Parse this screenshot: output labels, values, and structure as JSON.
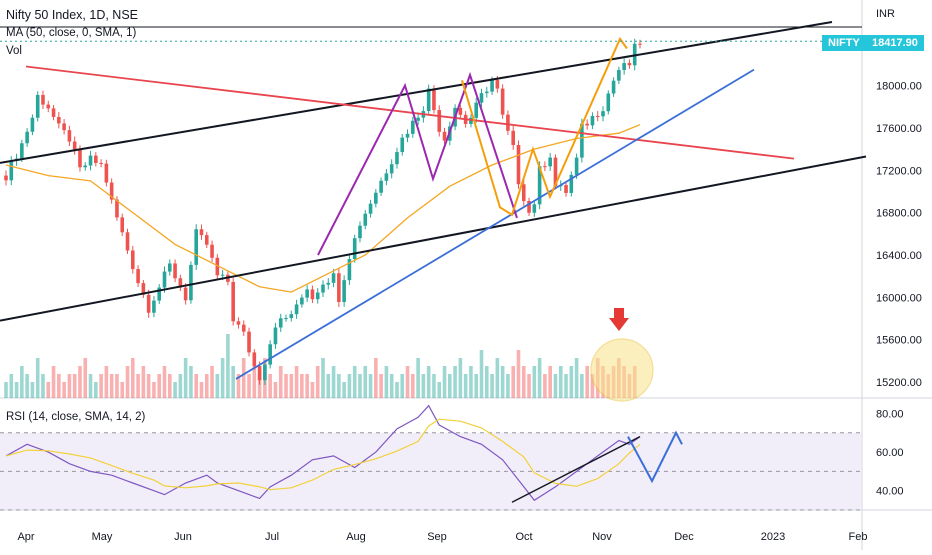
{
  "header": {
    "title": "Nifty 50 Index, 1D, NSE",
    "ma_legend": "MA (50, close, 0, SMA, 1)",
    "volume_legend": "Vol",
    "rsi_legend": "RSI (14, close, SMA, 14, 2)",
    "currency": "INR"
  },
  "price_tag": {
    "symbol": "NIFTY",
    "value": "18417.90",
    "color": "#26c6da"
  },
  "colors": {
    "up": "#26a69a",
    "down": "#ef5350",
    "ma": "#f5a623",
    "trendline": "#131722",
    "support": "#3a6fd8",
    "resistance": "#e8454f",
    "rsi": "#7e57c2",
    "rsi_signal": "#f2d13a",
    "pattern": "#9c27b0",
    "pattern_alt": "#f59e0b",
    "arrow": "#e53935",
    "circle": "#f8e38a"
  },
  "chart_data": [
    {
      "type": "candlestick",
      "title": "Nifty 50 Index, 1D, NSE",
      "x_ticks": [
        "Apr",
        "May",
        "Jun",
        "Jul",
        "Aug",
        "Sep",
        "Oct",
        "Nov",
        "Dec",
        "2023",
        "Feb"
      ],
      "y_ticks": [
        15200,
        15600,
        16000,
        16400,
        16800,
        17200,
        17600,
        18000
      ],
      "y_tick_labels": [
        "15200.00",
        "15600.00",
        "16000.00",
        "16400.00",
        "16800.00",
        "17200.00",
        "17600.00",
        "18000.00"
      ],
      "ylim": [
        15050,
        18600
      ],
      "last_price": 18417.9,
      "close_path": [
        [
          0,
          17150
        ],
        [
          3,
          17450
        ],
        [
          5,
          17700
        ],
        [
          6,
          17900
        ],
        [
          8,
          17800
        ],
        [
          10,
          17600
        ],
        [
          12,
          17500
        ],
        [
          14,
          17200
        ],
        [
          16,
          17300
        ],
        [
          18,
          17250
        ],
        [
          19,
          17100
        ],
        [
          20,
          16900
        ],
        [
          22,
          16600
        ],
        [
          24,
          16300
        ],
        [
          25,
          16150
        ],
        [
          27,
          15900
        ],
        [
          29,
          16100
        ],
        [
          31,
          16300
        ],
        [
          32,
          16200
        ],
        [
          34,
          16000
        ],
        [
          35,
          16300
        ],
        [
          36,
          16600
        ],
        [
          38,
          16500
        ],
        [
          39,
          16350
        ],
        [
          40,
          16200
        ],
        [
          42,
          16150
        ],
        [
          43,
          15800
        ],
        [
          45,
          15650
        ],
        [
          47,
          15350
        ],
        [
          48,
          15250
        ],
        [
          49,
          15400
        ],
        [
          51,
          15750
        ],
        [
          53,
          15800
        ],
        [
          55,
          15900
        ],
        [
          57,
          16100
        ],
        [
          58,
          16000
        ],
        [
          60,
          16150
        ],
        [
          62,
          16200
        ],
        [
          63,
          16000
        ],
        [
          65,
          16400
        ],
        [
          67,
          16700
        ],
        [
          69,
          16900
        ],
        [
          71,
          17100
        ],
        [
          73,
          17300
        ],
        [
          75,
          17500
        ],
        [
          77,
          17650
        ],
        [
          79,
          17800
        ],
        [
          80,
          17950
        ],
        [
          82,
          17600
        ],
        [
          83,
          17500
        ],
        [
          85,
          17800
        ],
        [
          87,
          17650
        ],
        [
          88,
          17700
        ],
        [
          90,
          17900
        ],
        [
          92,
          18050
        ],
        [
          93,
          17950
        ],
        [
          94,
          17700
        ],
        [
          96,
          17400
        ],
        [
          97,
          17100
        ],
        [
          99,
          16800
        ],
        [
          100,
          16900
        ],
        [
          101,
          17200
        ],
        [
          103,
          17350
        ],
        [
          104,
          17050
        ],
        [
          106,
          17000
        ],
        [
          108,
          17300
        ],
        [
          109,
          17600
        ],
        [
          111,
          17700
        ],
        [
          113,
          17800
        ],
        [
          115,
          18050
        ],
        [
          116,
          18150
        ],
        [
          118,
          18200
        ],
        [
          119,
          18350
        ],
        [
          120,
          18410
        ]
      ]
    },
    {
      "type": "line",
      "name": "MA (50, close, 0, SMA, 1)",
      "x": [
        0,
        8,
        16,
        24,
        32,
        40,
        48,
        54,
        60,
        68,
        76,
        84,
        92,
        100,
        108,
        116,
        120
      ],
      "y": [
        17250,
        17150,
        17100,
        16800,
        16500,
        16300,
        16100,
        16050,
        16200,
        16400,
        16750,
        17050,
        17250,
        17400,
        17500,
        17550,
        17630
      ]
    },
    {
      "type": "bar",
      "name": "Vol",
      "values": [
        2,
        3,
        2,
        4,
        3,
        2,
        5,
        3,
        2,
        4,
        3,
        2,
        3,
        3,
        4,
        5,
        3,
        2,
        3,
        4,
        3,
        3,
        2,
        4,
        5,
        3,
        4,
        3,
        2,
        3,
        4,
        3,
        2,
        3,
        5,
        4,
        3,
        2,
        3,
        4,
        3,
        5,
        8,
        4,
        3,
        5,
        3,
        4,
        3,
        5,
        3,
        2,
        4,
        3,
        3,
        4,
        3,
        3,
        2,
        4,
        5,
        3,
        4,
        3,
        2,
        3,
        4,
        3,
        4,
        3,
        5,
        3,
        4,
        3,
        2,
        3,
        4,
        3,
        5,
        3,
        4,
        3,
        2,
        4,
        3,
        4,
        5,
        3,
        4,
        3,
        6,
        4,
        3,
        5,
        4,
        3,
        4,
        6,
        4,
        3,
        4,
        5,
        3,
        4,
        3,
        4,
        3,
        4,
        5,
        3,
        4,
        3,
        5,
        4,
        3,
        4,
        5,
        4,
        3,
        4
      ]
    },
    {
      "type": "line",
      "name": "RSI (14, close, SMA, 14, 2)",
      "y_ticks": [
        40,
        60,
        80
      ],
      "y_tick_labels": [
        "40.00",
        "60.00",
        "80.00"
      ],
      "ylim": [
        30,
        88
      ],
      "x": [
        0,
        4,
        8,
        12,
        16,
        20,
        24,
        28,
        30,
        34,
        38,
        40,
        44,
        48,
        50,
        54,
        58,
        62,
        66,
        70,
        74,
        78,
        80,
        82,
        86,
        90,
        94,
        98,
        100,
        104,
        108,
        112,
        116,
        118,
        120
      ],
      "y": [
        58,
        64,
        60,
        54,
        50,
        48,
        44,
        40,
        38,
        44,
        48,
        44,
        40,
        36,
        42,
        48,
        56,
        58,
        52,
        60,
        72,
        78,
        84,
        74,
        68,
        64,
        56,
        42,
        35,
        42,
        50,
        58,
        66,
        64,
        68
      ]
    }
  ],
  "axis": {
    "month_labels": [
      "Apr",
      "May",
      "Jun",
      "Jul",
      "Aug",
      "Sep",
      "Oct",
      "Nov",
      "Dec",
      "2023",
      "Feb"
    ],
    "price_labels": [
      "18000.00",
      "17600.00",
      "17200.00",
      "16800.00",
      "16400.00",
      "16000.00",
      "15600.00",
      "15200.00"
    ],
    "rsi_labels": [
      "80.00",
      "60.00",
      "40.00"
    ]
  }
}
